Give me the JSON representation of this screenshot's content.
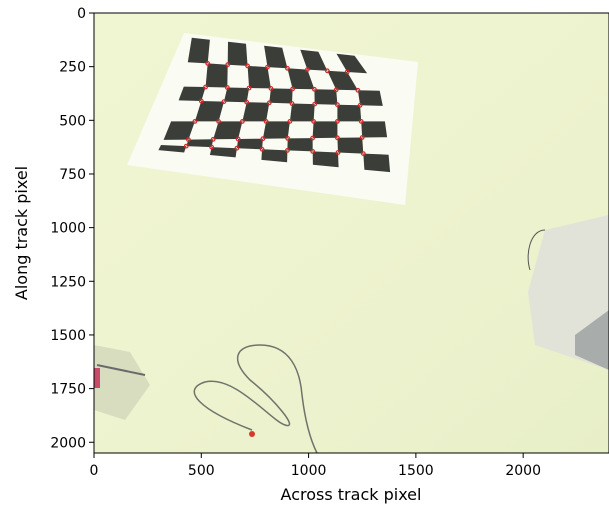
{
  "chart_data": {
    "type": "image",
    "xlabel": "Across track pixel",
    "ylabel": "Along track pixel",
    "xlim": [
      0,
      2400
    ],
    "ylim": [
      2050,
      0
    ],
    "x_ticks": [
      0,
      500,
      1000,
      1500,
      2000
    ],
    "y_ticks": [
      0,
      250,
      500,
      750,
      1000,
      1250,
      1500,
      1750,
      2000
    ],
    "x_tick_labels": [
      "0",
      "500",
      "1000",
      "1500",
      "2000"
    ],
    "y_tick_labels": [
      "0",
      "250",
      "500",
      "750",
      "1000",
      "1250",
      "1500",
      "1750",
      "2000"
    ],
    "image_description": "Fisheye camera photo of a printed checkerboard calibration target lying on a pale floor, with a cable, a box device at right, and a stand at lower left",
    "detected_corner_color": "#d62728",
    "checkerboard_corners": {
      "rows": 6,
      "cols": 8,
      "row_start_left": [
        [
          530,
          235
        ],
        [
          520,
          345
        ],
        [
          500,
          410
        ],
        [
          470,
          505
        ],
        [
          440,
          590
        ],
        [
          430,
          620
        ]
      ],
      "row_end_right": [
        [
          1180,
          275
        ],
        [
          1230,
          360
        ],
        [
          1240,
          430
        ],
        [
          1245,
          505
        ],
        [
          1250,
          580
        ],
        [
          1255,
          655
        ]
      ]
    }
  }
}
